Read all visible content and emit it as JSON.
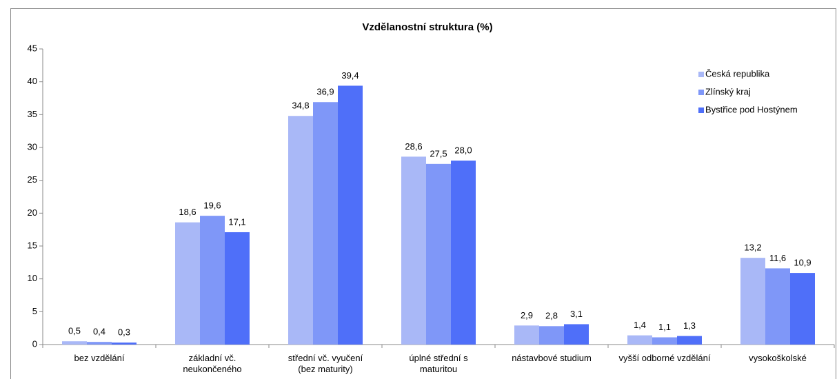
{
  "chart_data": {
    "type": "bar",
    "title": "Vzdělanostní struktura (%)",
    "categories": [
      "bez vzdělání",
      "základní vč. neukončeného",
      "střední vč. vyučení (bez maturity)",
      "úplné střední s maturitou",
      "nástavbové studium",
      "vyšší odborné vzdělání",
      "vysokoškolské"
    ],
    "series": [
      {
        "name": "Česká republika",
        "color": "#a9b8f7",
        "values": [
          0.5,
          18.6,
          34.8,
          28.6,
          2.9,
          1.4,
          13.2
        ],
        "value_labels": [
          "0,5",
          "18,6",
          "34,8",
          "28,6",
          "2,9",
          "1,4",
          "13,2"
        ]
      },
      {
        "name": "Zlínský kraj",
        "color": "#7f97f8",
        "values": [
          0.4,
          19.6,
          36.9,
          27.5,
          2.8,
          1.1,
          11.6
        ],
        "value_labels": [
          "0,4",
          "19,6",
          "36,9",
          "27,5",
          "2,8",
          "1,1",
          "11,6"
        ]
      },
      {
        "name": "Bystřice pod Hostýnem",
        "color": "#4f6ff9",
        "values": [
          0.3,
          17.1,
          39.4,
          28.0,
          3.1,
          1.3,
          10.9
        ],
        "value_labels": [
          "0,3",
          "17,1",
          "39,4",
          "28,0",
          "3,1",
          "1,3",
          "10,9"
        ]
      }
    ],
    "ylim": [
      0,
      45
    ],
    "yticks": [
      0,
      5,
      10,
      15,
      20,
      25,
      30,
      35,
      40,
      45
    ],
    "legend": "top-right",
    "grid": false
  }
}
